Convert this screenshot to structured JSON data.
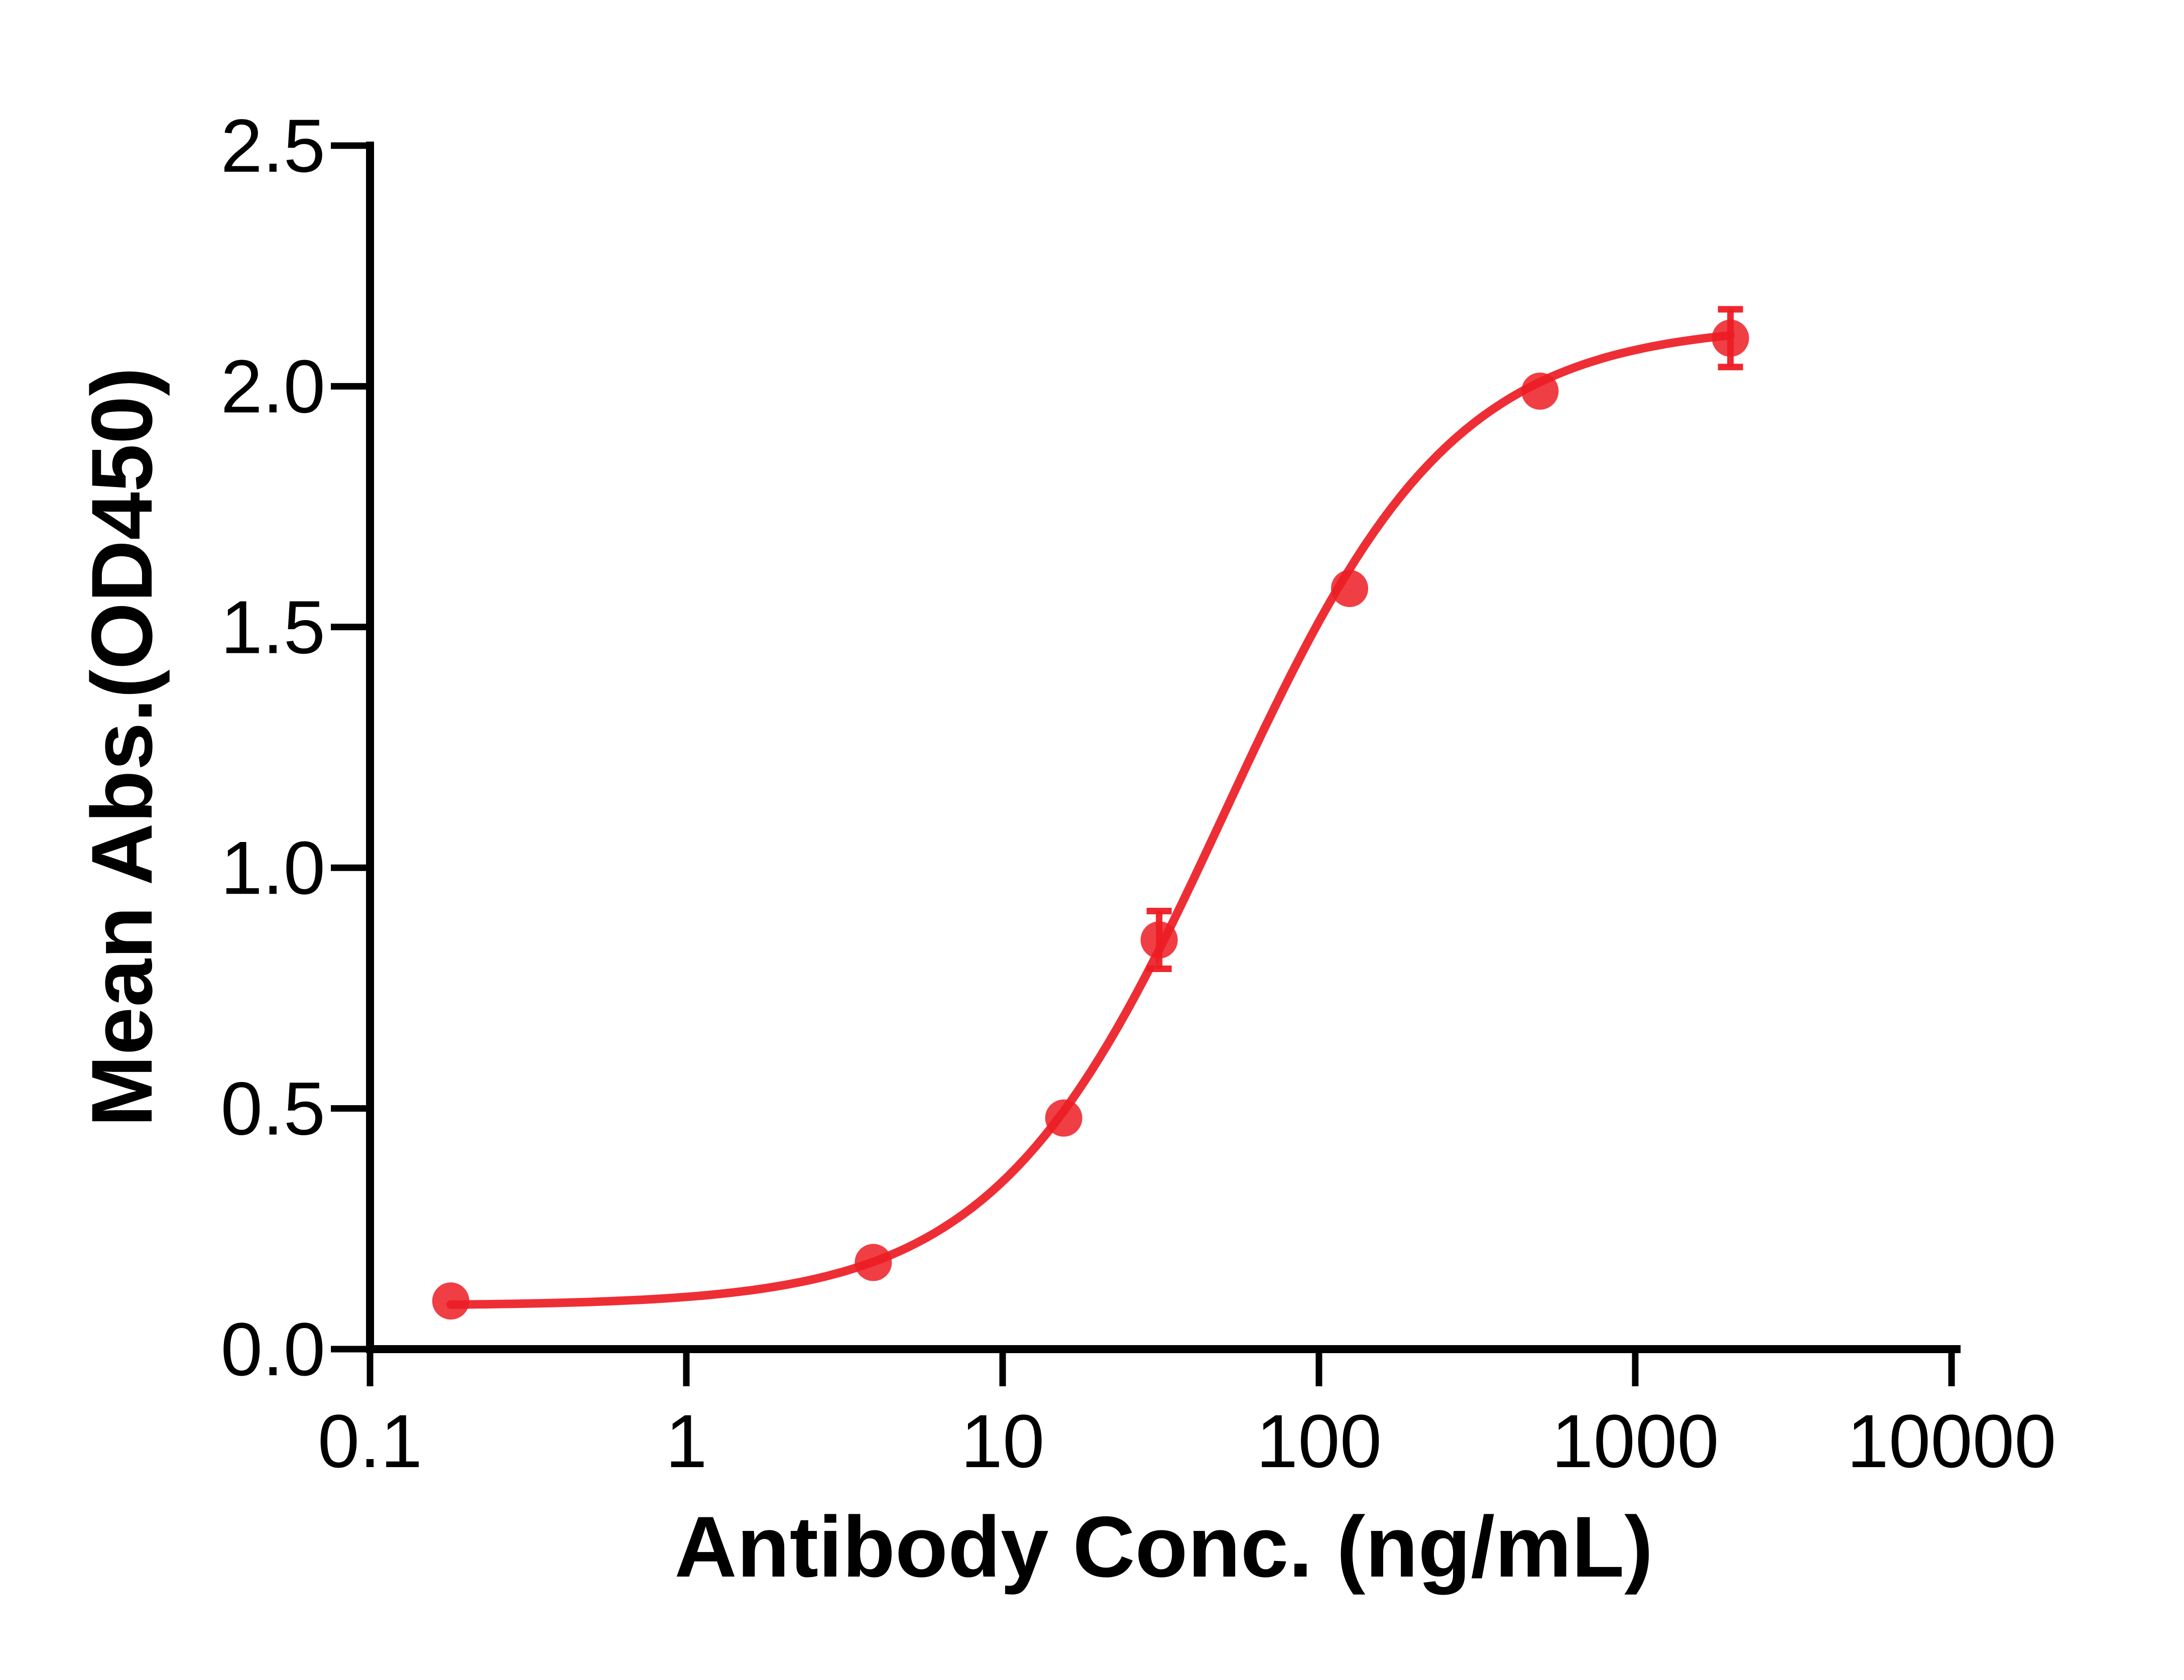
{
  "chart_data": {
    "type": "scatter",
    "title": "",
    "xlabel": "Antibody Conc. (ng/mL)",
    "ylabel": "Mean Abs.(OD450)",
    "x_scale": "log10",
    "xlim": [
      0.1,
      10000
    ],
    "ylim": [
      0.0,
      2.5
    ],
    "grid": false,
    "legend": false,
    "x_ticks": {
      "values": [
        0.1,
        1,
        10,
        100,
        1000,
        10000
      ],
      "labels": [
        "0.1",
        "1",
        "10",
        "100",
        "1000",
        "10000"
      ]
    },
    "y_ticks": {
      "values": [
        0.0,
        0.5,
        1.0,
        1.5,
        2.0,
        2.5
      ],
      "labels": [
        "0.0",
        "0.5",
        "1.0",
        "1.5",
        "2.0",
        "2.5"
      ]
    },
    "axis_color": "#000000",
    "series": [
      {
        "color": "#ED1C24",
        "marker": "circle",
        "x": [
          0.18,
          3.9,
          15.6,
          31.25,
          125,
          500,
          2000
        ],
        "y": [
          0.1,
          0.18,
          0.48,
          0.85,
          1.58,
          1.99,
          2.1
        ],
        "y_err": [
          0,
          0,
          0,
          0.06,
          0,
          0,
          0.06
        ],
        "fit": {
          "model": "4PL",
          "bottom": 0.09,
          "top": 2.13,
          "ec50": 50,
          "hill": 1.2,
          "x_start": 0.18,
          "x_end": 2000
        }
      }
    ]
  }
}
